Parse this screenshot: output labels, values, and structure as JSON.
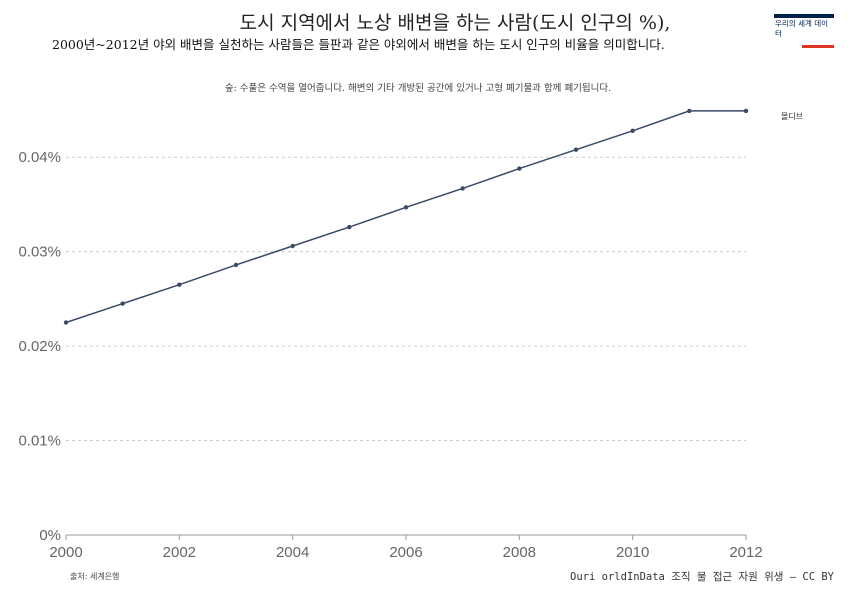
{
  "header": {
    "title": "도시 지역에서 노상 배변을 하는 사람(도시 인구의 %),",
    "subtitle": "2000년~2012년 야외 배변을 실천하는 사람들은 들판과 같은 야외에서 배변을 하는 도시 인구의 비율을 의미합니다.",
    "note": "숲: 수풀은 수역을 열어줍니다. 해변의 기타 개방된 공간에 있거나 고형 폐기물과 함께 폐기됩니다."
  },
  "logo": {
    "text": "우리의 세계 데이터"
  },
  "footer": {
    "source": "출처: 세계은행",
    "license": "Ouri orldInData 조직 물 접근 자원 위생 – CC BY"
  },
  "colors": {
    "series": "#3b4a66",
    "grid": "#cccccc",
    "axis": "#999999",
    "logo_navy": "#002147",
    "logo_red": "#dc3522"
  },
  "chart_data": {
    "type": "line",
    "title": "도시 지역에서 노상 배변을 하는 사람(도시 인구의 %),",
    "xlabel": "",
    "ylabel": "",
    "xlim": [
      2000,
      2012
    ],
    "ylim": [
      0,
      0.045
    ],
    "x_ticks": [
      2000,
      2002,
      2004,
      2006,
      2008,
      2010,
      2012
    ],
    "y_ticks": [
      0,
      0.01,
      0.02,
      0.03,
      0.04
    ],
    "y_tick_labels": [
      "0%",
      "0.01%",
      "0.02%",
      "0.03%",
      "0.04%"
    ],
    "grid": "horizontal dashed",
    "series": [
      {
        "name": "몰디브",
        "x": [
          2000,
          2001,
          2002,
          2003,
          2004,
          2005,
          2006,
          2007,
          2008,
          2009,
          2010,
          2011,
          2012
        ],
        "values": [
          0.0225,
          0.0245,
          0.0265,
          0.0286,
          0.0306,
          0.0326,
          0.0347,
          0.0367,
          0.0388,
          0.0408,
          0.0428,
          0.0449,
          0.0449
        ]
      }
    ]
  }
}
